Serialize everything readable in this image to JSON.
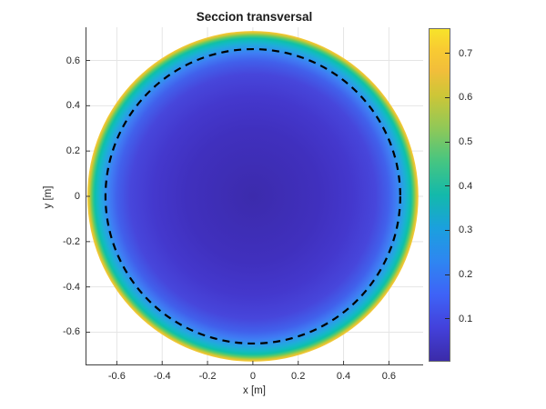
{
  "style": {
    "background": "#ffffff",
    "axis_color": "#3f3f3f",
    "grid_color": "#e5e5e5",
    "tick_label_color": "#262626",
    "title_color": "#1a1a1a",
    "colorbar_border": "#6b6b6b",
    "dash_color": "#000000"
  },
  "chart_data": {
    "type": "heatmap",
    "title": "Seccion transversal",
    "xlabel": "x [m]",
    "ylabel": "y [m]",
    "xlim": [
      -0.738,
      0.751
    ],
    "ylim": [
      -0.7465,
      0.7465
    ],
    "xticks": [
      -0.6,
      -0.4,
      -0.2,
      0,
      0.2,
      0.4,
      0.6
    ],
    "yticks": [
      -0.6,
      -0.4,
      -0.2,
      0,
      0.2,
      0.4,
      0.6
    ],
    "grid": true,
    "colormap": "parula",
    "field": {
      "shape": "disc",
      "center": [
        0,
        0
      ],
      "radius": 0.73,
      "description": "Radially symmetric scalar field on a circular cross-section: minimum ~0.04 at the center, rising steeply near the rim to ~0.75 at r~0.73 m",
      "radial_profile": [
        {
          "r": 0.0,
          "value": 0.04
        },
        {
          "r": 0.3,
          "value": 0.07
        },
        {
          "r": 0.45,
          "value": 0.11
        },
        {
          "r": 0.55,
          "value": 0.16
        },
        {
          "r": 0.6,
          "value": 0.21
        },
        {
          "r": 0.63,
          "value": 0.27
        },
        {
          "r": 0.655,
          "value": 0.32
        },
        {
          "r": 0.675,
          "value": 0.4
        },
        {
          "r": 0.69,
          "value": 0.48
        },
        {
          "r": 0.7,
          "value": 0.55
        },
        {
          "r": 0.71,
          "value": 0.63
        },
        {
          "r": 0.72,
          "value": 0.7
        },
        {
          "r": 0.73,
          "value": 0.75
        }
      ],
      "gradient_stops": [
        {
          "pos": 0.0,
          "color": "#3C2BAC"
        },
        {
          "pos": 0.4,
          "color": "#4030BE"
        },
        {
          "pos": 0.6,
          "color": "#4438CD"
        },
        {
          "pos": 0.74,
          "color": "#4746DB"
        },
        {
          "pos": 0.82,
          "color": "#4160EB"
        },
        {
          "pos": 0.865,
          "color": "#3F7DF4"
        },
        {
          "pos": 0.895,
          "color": "#2F97EC"
        },
        {
          "pos": 0.92,
          "color": "#20ABDB"
        },
        {
          "pos": 0.94,
          "color": "#12BAC3"
        },
        {
          "pos": 0.955,
          "color": "#0FC0A7"
        },
        {
          "pos": 0.966,
          "color": "#3BC783"
        },
        {
          "pos": 0.976,
          "color": "#78C958"
        },
        {
          "pos": 0.984,
          "color": "#B5C93E"
        },
        {
          "pos": 0.991,
          "color": "#E0C532"
        },
        {
          "pos": 0.996,
          "color": "#F2C43A"
        },
        {
          "pos": 1.0,
          "color": "#F6D32F"
        }
      ]
    },
    "overlay_circle": {
      "center": [
        0,
        0
      ],
      "radius": 0.65,
      "style": "dashed",
      "color": "#000000"
    },
    "colorbar": {
      "vmin": 0.005,
      "vmax": 0.755,
      "ticks": [
        0.1,
        0.2,
        0.3,
        0.4,
        0.5,
        0.6,
        0.7
      ],
      "gradient_stops": [
        {
          "pos": 0.0,
          "color": "#3B2BA9"
        },
        {
          "pos": 0.1,
          "color": "#4341DB"
        },
        {
          "pos": 0.2,
          "color": "#3E63F7"
        },
        {
          "pos": 0.3,
          "color": "#2E86F1"
        },
        {
          "pos": 0.4,
          "color": "#1BA0DE"
        },
        {
          "pos": 0.5,
          "color": "#13B9AB"
        },
        {
          "pos": 0.6,
          "color": "#45C582"
        },
        {
          "pos": 0.7,
          "color": "#8FC858"
        },
        {
          "pos": 0.8,
          "color": "#CDC637"
        },
        {
          "pos": 0.875,
          "color": "#F2BE3A"
        },
        {
          "pos": 0.94,
          "color": "#F8CB32"
        },
        {
          "pos": 1.0,
          "color": "#F7E32A"
        }
      ]
    }
  }
}
